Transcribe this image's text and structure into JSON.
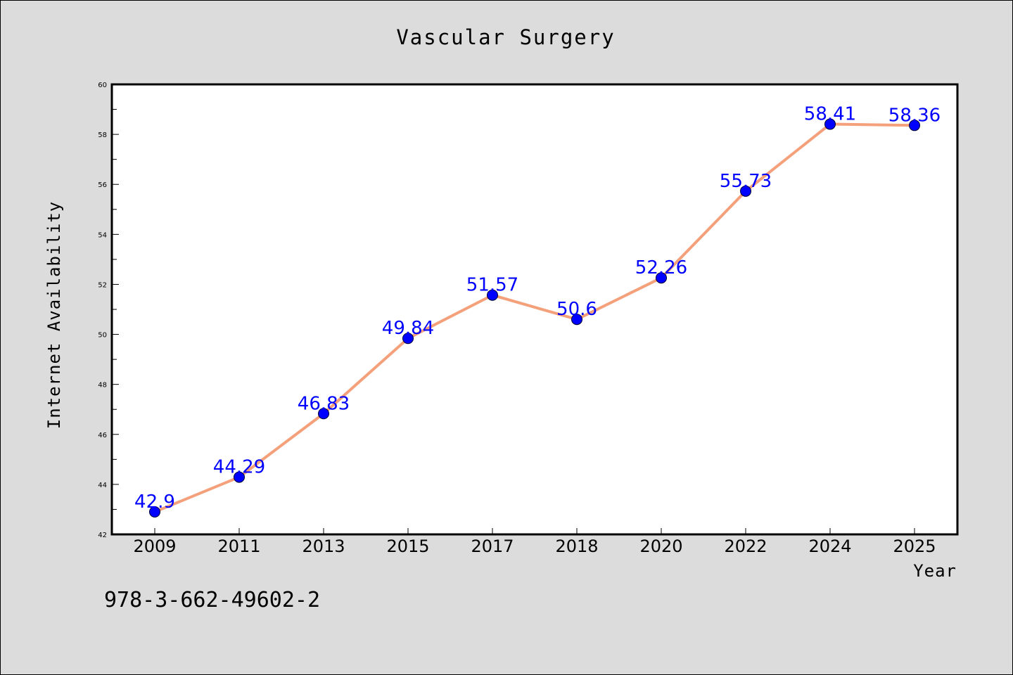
{
  "chart_data": {
    "type": "line",
    "title": "Vascular Surgery",
    "xlabel": "Year",
    "ylabel": "Internet Availability",
    "categories": [
      "2009",
      "2011",
      "2013",
      "2015",
      "2017",
      "2018",
      "2020",
      "2022",
      "2024",
      "2025"
    ],
    "series": [
      {
        "values": [
          42.9,
          44.29,
          46.83,
          49.84,
          51.57,
          50.6,
          52.26,
          55.73,
          58.41,
          58.36
        ],
        "labels": [
          "42.9",
          "44.29",
          "46.83",
          "49.84",
          "51.57",
          "50.6",
          "52.26",
          "55.73",
          "58.41",
          "58.36"
        ],
        "line_color": "#f4a07a",
        "marker_color": "#0000ff"
      }
    ],
    "ylim": [
      42,
      60
    ],
    "yticks": [
      "42",
      "44",
      "46",
      "48",
      "50",
      "52",
      "54",
      "56",
      "58",
      "60"
    ],
    "grid": false,
    "legend": "none"
  },
  "caption": "978-3-662-49602-2",
  "colors": {
    "background": "#dcdcdc",
    "plot_background": "#ffffff",
    "data_label": "#0000ff"
  }
}
